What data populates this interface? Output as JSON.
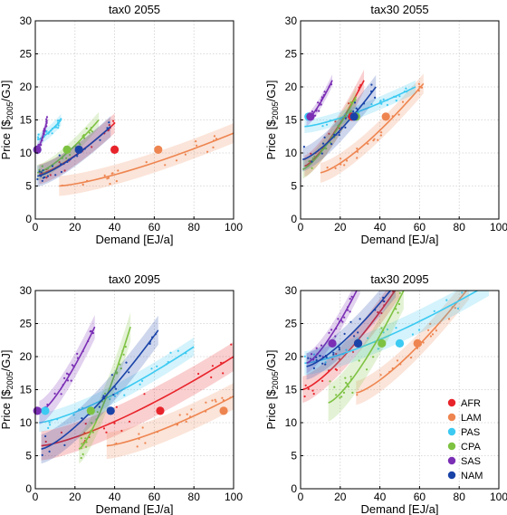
{
  "figure": {
    "y_label_main": "Price [$",
    "y_label_sub": "2005",
    "y_label_end": "/GJ]",
    "x_label": "Demand [EJ/a]"
  },
  "series_colors": {
    "AFR": "#e8242b",
    "LAM": "#ee8550",
    "PAS": "#3ccaf2",
    "CPA": "#7ec242",
    "SAS": "#7b2fb5",
    "NAM": "#1a43a8"
  },
  "legend": [
    "AFR",
    "LAM",
    "PAS",
    "CPA",
    "SAS",
    "NAM"
  ],
  "chart_data": [
    {
      "type": "scatter",
      "title": "tax0 2055",
      "xlabel": "Demand [EJ/a]",
      "ylabel": "Price [$2005/GJ]",
      "xlim": [
        0,
        100
      ],
      "ylim": [
        0,
        30
      ],
      "xticks": [
        0,
        20,
        40,
        60,
        80,
        100
      ],
      "yticks": [
        0,
        5,
        10,
        15,
        20,
        25,
        30
      ],
      "grid": true,
      "series": [
        {
          "name": "AFR",
          "fit_x": [
            2,
            40
          ],
          "fit_y": [
            6.8,
            14.5
          ],
          "band": 1.5,
          "marker": [
            40,
            10.5
          ]
        },
        {
          "name": "LAM",
          "fit_x": [
            12,
            100
          ],
          "fit_y": [
            5.0,
            13.0
          ],
          "band": 1.5,
          "marker": [
            62,
            10.5
          ]
        },
        {
          "name": "PAS",
          "fit_x": [
            1,
            13
          ],
          "fit_y": [
            12.0,
            15.0
          ],
          "band": 0.9,
          "marker": [
            1,
            10.5
          ]
        },
        {
          "name": "CPA",
          "fit_x": [
            1,
            32
          ],
          "fit_y": [
            7.0,
            15.0
          ],
          "band": 1.2,
          "marker": [
            16,
            10.5
          ]
        },
        {
          "name": "SAS",
          "fit_x": [
            1,
            6
          ],
          "fit_y": [
            10.5,
            15.0
          ],
          "band": 0.9,
          "marker": [
            1,
            10.5
          ]
        },
        {
          "name": "NAM",
          "fit_x": [
            1,
            38
          ],
          "fit_y": [
            6.5,
            14.0
          ],
          "band": 1.6,
          "marker": [
            22,
            10.5
          ]
        }
      ]
    },
    {
      "type": "scatter",
      "title": "tax30 2055",
      "xlabel": "Demand [EJ/a]",
      "ylabel": "Price [$2005/GJ]",
      "xlim": [
        0,
        100
      ],
      "ylim": [
        0,
        30
      ],
      "xticks": [
        0,
        20,
        40,
        60,
        80,
        100
      ],
      "yticks": [
        0,
        5,
        10,
        15,
        20,
        25,
        30
      ],
      "grid": true,
      "series": [
        {
          "name": "AFR",
          "fit_x": [
            2,
            32
          ],
          "fit_y": [
            8.0,
            21.0
          ],
          "band": 1.6,
          "marker": [
            26,
            15.5
          ]
        },
        {
          "name": "LAM",
          "fit_x": [
            10,
            62
          ],
          "fit_y": [
            7.0,
            20.5
          ],
          "band": 1.5,
          "marker": [
            43,
            15.5
          ]
        },
        {
          "name": "PAS",
          "fit_x": [
            2,
            58
          ],
          "fit_y": [
            14.0,
            20.0
          ],
          "band": 1.0,
          "marker": [
            4,
            15.5
          ]
        },
        {
          "name": "CPA",
          "fit_x": [
            1,
            28
          ],
          "fit_y": [
            7.5,
            18.5
          ],
          "band": 1.4,
          "marker": [
            28,
            15.5
          ]
        },
        {
          "name": "SAS",
          "fit_x": [
            3,
            16
          ],
          "fit_y": [
            15.0,
            21.0
          ],
          "band": 0.9,
          "marker": [
            5,
            15.5
          ]
        },
        {
          "name": "NAM",
          "fit_x": [
            1,
            38
          ],
          "fit_y": [
            9.0,
            20.0
          ],
          "band": 1.8,
          "marker": [
            27,
            15.5
          ]
        }
      ]
    },
    {
      "type": "scatter",
      "title": "tax0 2095",
      "xlabel": "Demand [EJ/a]",
      "ylabel": "Price [$2005/GJ]",
      "xlim": [
        0,
        100
      ],
      "ylim": [
        0,
        30
      ],
      "xticks": [
        0,
        20,
        40,
        60,
        80,
        100
      ],
      "yticks": [
        0,
        5,
        10,
        15,
        20,
        25,
        30
      ],
      "grid": true,
      "series": [
        {
          "name": "AFR",
          "fit_x": [
            3,
            100
          ],
          "fit_y": [
            6.5,
            20.0
          ],
          "band": 2.2,
          "marker": [
            63,
            11.8
          ]
        },
        {
          "name": "LAM",
          "fit_x": [
            36,
            100
          ],
          "fit_y": [
            6.5,
            14.0
          ],
          "band": 2.0,
          "marker": [
            95,
            11.8
          ]
        },
        {
          "name": "PAS",
          "fit_x": [
            2,
            80
          ],
          "fit_y": [
            10.0,
            21.5
          ],
          "band": 1.4,
          "marker": [
            5,
            11.8
          ]
        },
        {
          "name": "CPA",
          "fit_x": [
            22,
            48
          ],
          "fit_y": [
            6.0,
            24.5
          ],
          "band": 2.2,
          "marker": [
            28,
            11.8
          ]
        },
        {
          "name": "SAS",
          "fit_x": [
            2,
            30
          ],
          "fit_y": [
            11.5,
            24.5
          ],
          "band": 1.8,
          "marker": [
            1,
            11.8
          ]
        },
        {
          "name": "NAM",
          "fit_x": [
            3,
            62
          ],
          "fit_y": [
            6.0,
            24.0
          ],
          "band": 2.2,
          "marker": [
            38,
            11.8
          ]
        }
      ]
    },
    {
      "type": "scatter",
      "title": "tax30 2095",
      "xlabel": "Demand [EJ/a]",
      "ylabel": "Price [$2005/GJ]",
      "xlim": [
        0,
        100
      ],
      "ylim": [
        0,
        30
      ],
      "xticks": [
        0,
        20,
        40,
        60,
        80,
        100
      ],
      "yticks": [
        0,
        5,
        10,
        15,
        20,
        25,
        30
      ],
      "grid": true,
      "legend_position": "bottom-right",
      "series": [
        {
          "name": "AFR",
          "fit_x": [
            1,
            50
          ],
          "fit_y": [
            15.0,
            31.0
          ],
          "band": 2.0,
          "marker": [
            29,
            22.0
          ]
        },
        {
          "name": "LAM",
          "fit_x": [
            28,
            85
          ],
          "fit_y": [
            14.5,
            30.5
          ],
          "band": 1.8,
          "marker": [
            59,
            22.0
          ]
        },
        {
          "name": "PAS",
          "fit_x": [
            2,
            95
          ],
          "fit_y": [
            19.0,
            31.0
          ],
          "band": 1.8,
          "marker": [
            50,
            22.0
          ]
        },
        {
          "name": "CPA",
          "fit_x": [
            14,
            52
          ],
          "fit_y": [
            13.0,
            30.0
          ],
          "band": 2.8,
          "marker": [
            41,
            22.0
          ]
        },
        {
          "name": "SAS",
          "fit_x": [
            3,
            30
          ],
          "fit_y": [
            19.0,
            31.0
          ],
          "band": 1.5,
          "marker": [
            16,
            22.0
          ]
        },
        {
          "name": "NAM",
          "fit_x": [
            3,
            48
          ],
          "fit_y": [
            18.5,
            31.0
          ],
          "band": 2.0,
          "marker": [
            29,
            22.0
          ]
        }
      ]
    }
  ]
}
